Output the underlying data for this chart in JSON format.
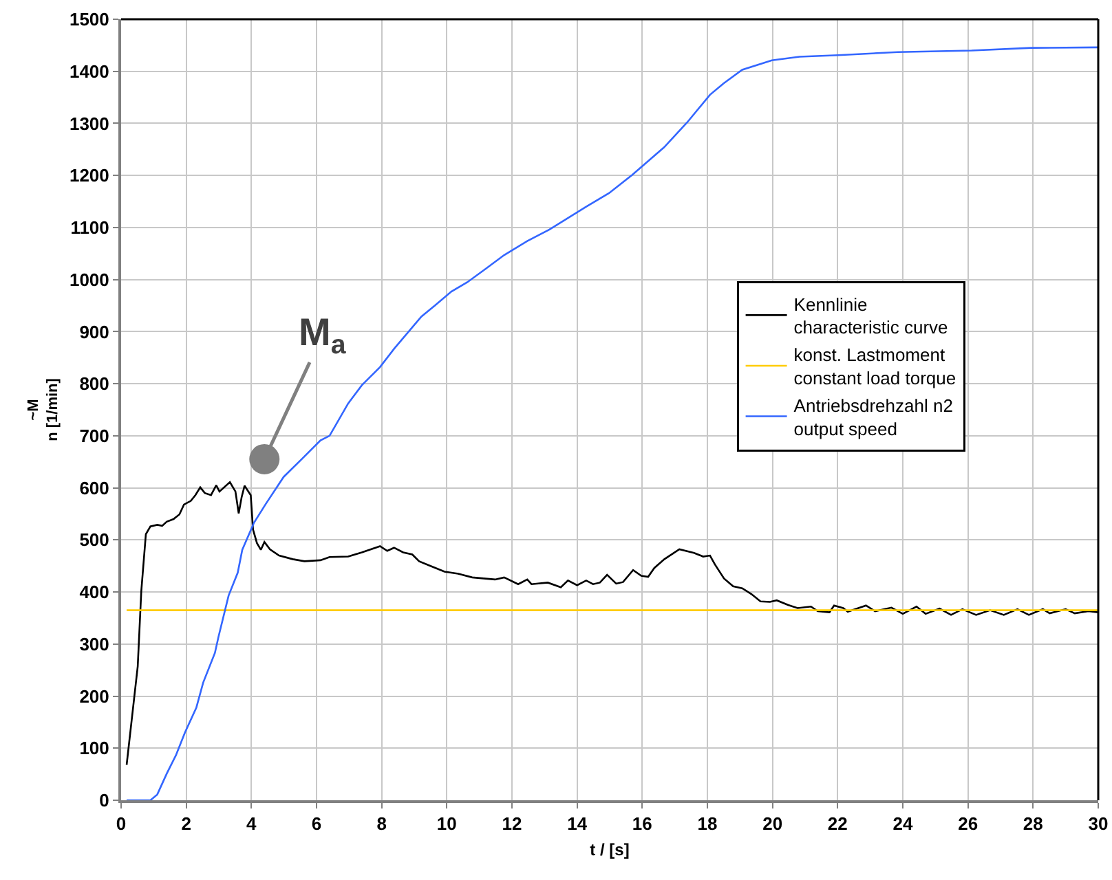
{
  "chart_data": {
    "type": "line",
    "xlabel": "t / [s]",
    "ylabel": "~M\nn [1/min]",
    "xlim": [
      0,
      30
    ],
    "xticks": [
      0,
      2,
      4,
      6,
      8,
      10,
      12,
      14,
      16,
      18,
      20,
      22,
      24,
      26,
      28,
      30
    ],
    "ylim": [
      0,
      1500
    ],
    "yticks": [
      0,
      100,
      200,
      300,
      400,
      500,
      600,
      700,
      800,
      900,
      1000,
      1100,
      1200,
      1300,
      1400,
      1500
    ],
    "grid": true,
    "legend": "right",
    "marker": "none",
    "line_style": "solid",
    "annotations": [
      {
        "text": "M$_{a}$",
        "x": 4.4,
        "y": 655
      }
    ],
    "series": [
      {
        "name": "Kennlinie\ncharacteristic curve",
        "color": "#000000",
        "x": [
          0.17,
          0.51,
          0.62,
          0.76,
          0.9,
          1.11,
          1.26,
          1.4,
          1.61,
          1.79,
          1.93,
          2.14,
          2.28,
          2.43,
          2.57,
          2.76,
          2.92,
          3.02,
          3.34,
          3.51,
          3.61,
          3.7,
          3.79,
          3.98,
          4.05,
          4.17,
          4.29,
          4.4,
          4.57,
          4.85,
          5.27,
          5.63,
          6.12,
          6.4,
          6.97,
          7.39,
          7.95,
          8.17,
          8.38,
          8.66,
          8.94,
          9.15,
          9.5,
          9.93,
          10.35,
          10.78,
          11.48,
          11.76,
          12.19,
          12.47,
          12.6,
          13.1,
          13.5,
          13.72,
          14,
          14.28,
          14.49,
          14.7,
          14.92,
          15.2,
          15.41,
          15.72,
          15.97,
          16.18,
          16.37,
          16.68,
          17.14,
          17.59,
          17.87,
          18.08,
          18.23,
          18.51,
          18.79,
          19.07,
          19.35,
          19.63,
          19.92,
          20.13,
          20.48,
          20.77,
          21.18,
          21.39,
          21.75,
          21.89,
          22.17,
          22.31,
          22.87,
          23.15,
          23.65,
          24,
          24.42,
          24.7,
          25.13,
          25.48,
          25.83,
          26.25,
          26.68,
          27.1,
          27.52,
          27.87,
          28.3,
          28.51,
          29,
          29.28,
          29.7,
          30
        ],
        "values": [
          68,
          257,
          402,
          511,
          526,
          529,
          527,
          535,
          540,
          549,
          568,
          575,
          586,
          601,
          590,
          586,
          605,
          593,
          611,
          593,
          551,
          582,
          604,
          586,
          520,
          494,
          481,
          496,
          482,
          470,
          463,
          459,
          461,
          467,
          468,
          476,
          488,
          479,
          485,
          476,
          472,
          459,
          450,
          439,
          435,
          428,
          424,
          428,
          415,
          424,
          415,
          418,
          409,
          422,
          413,
          422,
          415,
          418,
          433,
          416,
          419,
          442,
          431,
          429,
          446,
          463,
          482,
          475,
          468,
          470,
          453,
          426,
          411,
          407,
          396,
          382,
          381,
          384,
          375,
          369,
          372,
          363,
          361,
          374,
          369,
          362,
          374,
          363,
          370,
          358,
          372,
          358,
          368,
          356,
          367,
          356,
          365,
          356,
          367,
          356,
          367,
          359,
          367,
          359,
          363,
          361
        ]
      },
      {
        "name": "konst. Lastmoment\nconstant load torque",
        "color": "#ffcc00",
        "x": [
          0.17,
          30
        ],
        "values": [
          365,
          365
        ]
      },
      {
        "name": "Antriebsdrehzahl n2\noutput speed",
        "color": "#3366ff",
        "x": [
          0.17,
          0.9,
          1.11,
          1.4,
          1.68,
          1.96,
          2.31,
          2.52,
          2.88,
          2.99,
          3.3,
          3.58,
          3.72,
          4.08,
          4.43,
          4.99,
          5.56,
          6.12,
          6.4,
          6.97,
          7.39,
          7.95,
          8.38,
          8.8,
          9.22,
          9.65,
          10.14,
          10.63,
          11.2,
          11.76,
          12.47,
          13.15,
          14.28,
          14.98,
          15.69,
          16.67,
          17.38,
          18.08,
          18.5,
          19.07,
          19.98,
          20.83,
          22.02,
          23.85,
          26.11,
          27.94,
          30
        ],
        "values": [
          0,
          0,
          11,
          51,
          86,
          130,
          178,
          226,
          283,
          314,
          393,
          437,
          481,
          533,
          568,
          621,
          656,
          691,
          700,
          762,
          797,
          832,
          867,
          898,
          929,
          951,
          977,
          995,
          1021,
          1047,
          1074,
          1096,
          1140,
          1166,
          1201,
          1254,
          1302,
          1355,
          1377,
          1403,
          1421,
          1428,
          1431,
          1437,
          1440,
          1445,
          1446
        ]
      }
    ]
  }
}
